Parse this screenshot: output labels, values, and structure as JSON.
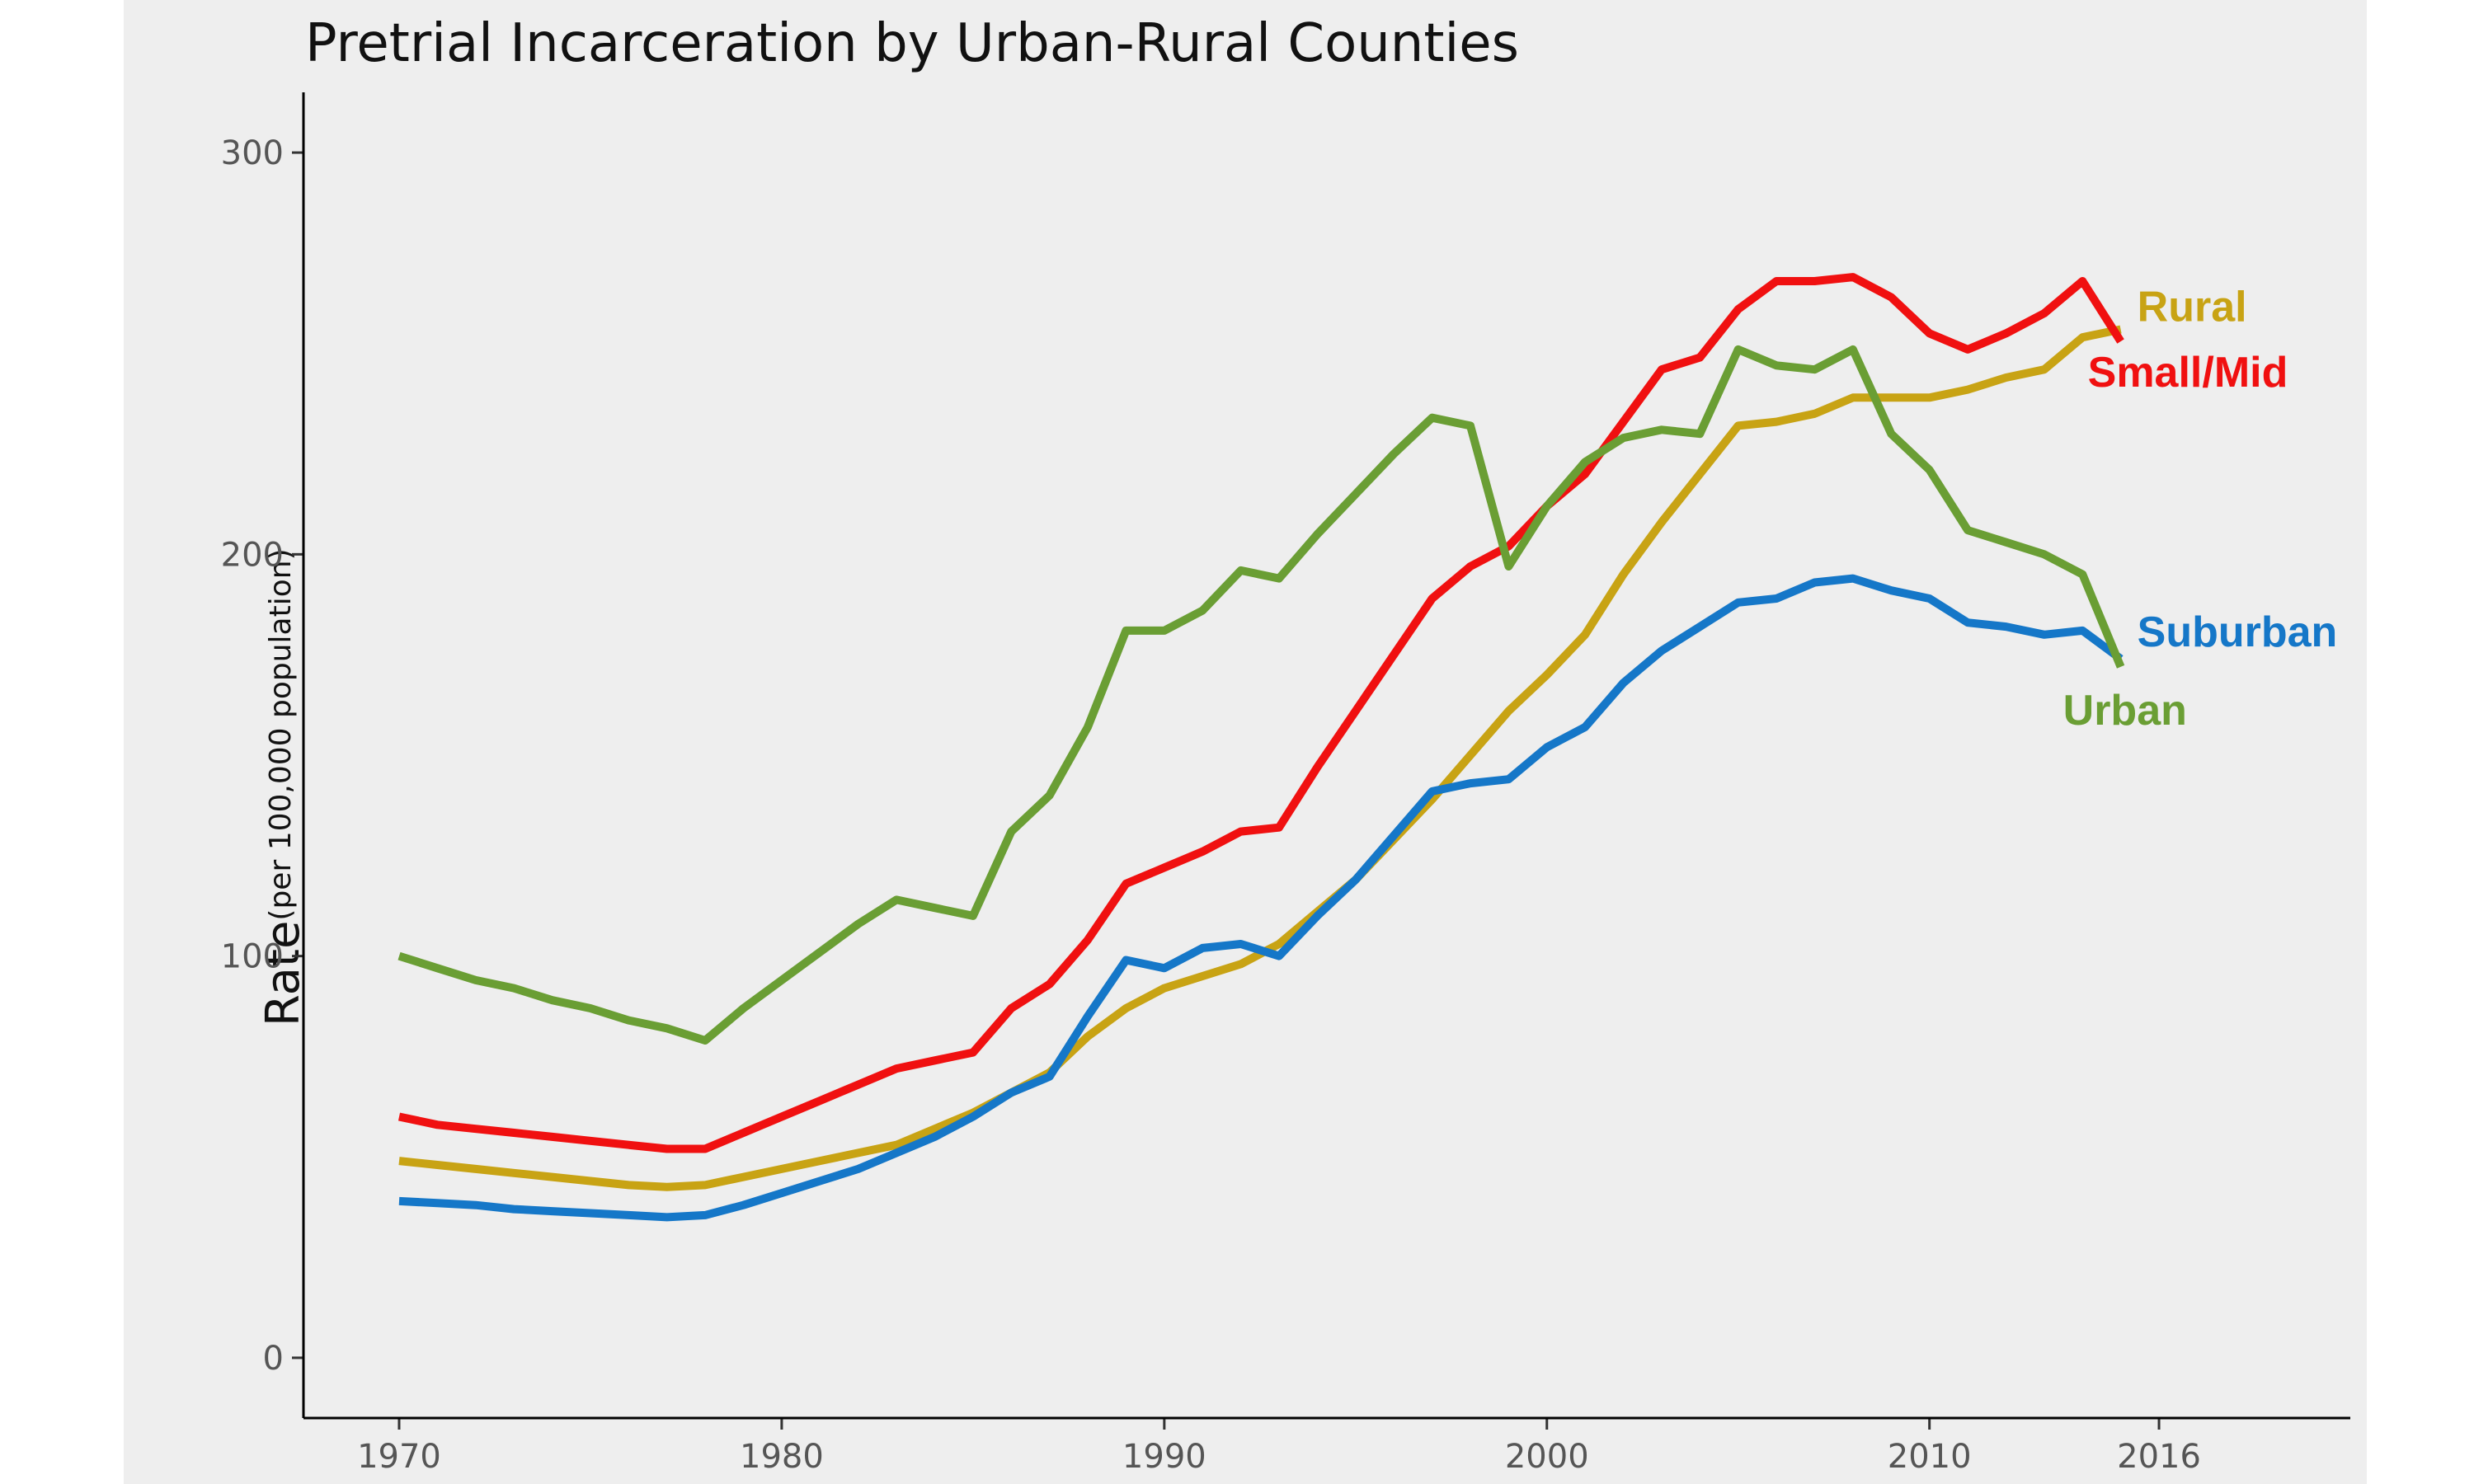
{
  "chart_data": {
    "type": "line",
    "title": "Pretrial Incarceration by Urban-Rural Counties",
    "ylabel": "Rate",
    "ylabel_sub": "(per 100,000 population)",
    "xlabel": "",
    "xlim": [
      1967.5,
      2021
    ],
    "ylim": [
      -15,
      315
    ],
    "xticks": [
      1970,
      1980,
      1990,
      2000,
      2010,
      2016
    ],
    "yticks": [
      0,
      100,
      200,
      300
    ],
    "grid": false,
    "legend": "direct labels at line ends",
    "series": [
      {
        "name": "Rural",
        "color": "#c8a314",
        "x": [
          1970,
          1971,
          1972,
          1973,
          1974,
          1975,
          1976,
          1977,
          1978,
          1979,
          1980,
          1981,
          1982,
          1983,
          1984,
          1985,
          1986,
          1987,
          1988,
          1989,
          1990,
          1991,
          1992,
          1993,
          1994,
          1995,
          1996,
          1997,
          1998,
          1999,
          2000,
          2001,
          2002,
          2003,
          2004,
          2005,
          2006,
          2007,
          2008,
          2009,
          2010,
          2011,
          2012,
          2013,
          2014,
          2015
        ],
        "y": [
          49,
          48,
          47,
          46,
          45,
          44,
          43,
          42.5,
          43,
          45,
          47,
          49,
          51,
          53,
          57,
          61,
          66,
          71,
          80,
          87,
          92,
          95,
          98,
          103,
          111,
          119,
          129,
          139,
          150,
          161,
          170,
          180,
          195,
          208,
          220,
          232,
          233,
          235,
          239,
          239,
          239,
          241,
          244,
          246,
          254,
          256
        ]
      },
      {
        "name": "Small/Mid",
        "color": "#f01010",
        "x": [
          1970,
          1971,
          1972,
          1973,
          1974,
          1975,
          1976,
          1977,
          1978,
          1979,
          1980,
          1981,
          1982,
          1983,
          1984,
          1985,
          1986,
          1987,
          1988,
          1989,
          1990,
          1991,
          1992,
          1993,
          1994,
          1995,
          1996,
          1997,
          1998,
          1999,
          2000,
          2001,
          2002,
          2003,
          2004,
          2005,
          2006,
          2007,
          2008,
          2009,
          2010,
          2011,
          2012,
          2013,
          2014,
          2015
        ],
        "y": [
          60,
          58,
          57,
          56,
          55,
          54,
          53,
          52,
          52,
          56,
          60,
          64,
          68,
          72,
          74,
          76,
          87,
          93,
          104,
          118,
          122,
          126,
          131,
          132,
          147,
          161,
          175,
          189,
          197,
          202,
          212,
          220,
          233,
          246,
          249,
          261,
          268,
          268,
          269,
          264,
          255,
          251,
          255,
          260,
          268,
          253
        ]
      },
      {
        "name": "Suburban",
        "color": "#1577c8",
        "x": [
          1970,
          1971,
          1972,
          1973,
          1974,
          1975,
          1976,
          1977,
          1978,
          1979,
          1980,
          1981,
          1982,
          1983,
          1984,
          1985,
          1986,
          1987,
          1988,
          1989,
          1990,
          1991,
          1992,
          1993,
          1994,
          1995,
          1996,
          1997,
          1998,
          1999,
          2000,
          2001,
          2002,
          2003,
          2004,
          2005,
          2006,
          2007,
          2008,
          2009,
          2010,
          2011,
          2012,
          2013,
          2014,
          2015
        ],
        "y": [
          39,
          38.5,
          38,
          37,
          36.5,
          36,
          35.5,
          35,
          35.5,
          38,
          41,
          44,
          47,
          51,
          55,
          60,
          66,
          70,
          85,
          99,
          97,
          102,
          103,
          100,
          110,
          119,
          130,
          141,
          143,
          144,
          152,
          157,
          168,
          176,
          182,
          188,
          189,
          193,
          194,
          191,
          189,
          183,
          182,
          180,
          181,
          174
        ]
      },
      {
        "name": "Urban",
        "color": "#6a9e34",
        "x": [
          1970,
          1971,
          1972,
          1973,
          1974,
          1975,
          1976,
          1977,
          1978,
          1979,
          1980,
          1981,
          1982,
          1983,
          1984,
          1985,
          1986,
          1987,
          1988,
          1989,
          1990,
          1991,
          1992,
          1993,
          1994,
          1995,
          1996,
          1997,
          1998,
          1999,
          2000,
          2001,
          2002,
          2003,
          2004,
          2005,
          2006,
          2007,
          2008,
          2009,
          2010,
          2011,
          2012,
          2013,
          2014,
          2015
        ],
        "y": [
          100,
          97,
          94,
          92,
          89,
          87,
          84,
          82,
          79,
          87,
          94,
          101,
          108,
          114,
          112,
          110,
          131,
          140,
          157,
          181,
          181,
          186,
          196,
          194,
          205,
          215,
          225,
          234,
          232,
          197,
          212,
          223,
          229,
          231,
          230,
          251,
          247,
          246,
          251,
          230,
          221,
          206,
          203,
          200,
          195,
          172
        ]
      }
    ]
  }
}
